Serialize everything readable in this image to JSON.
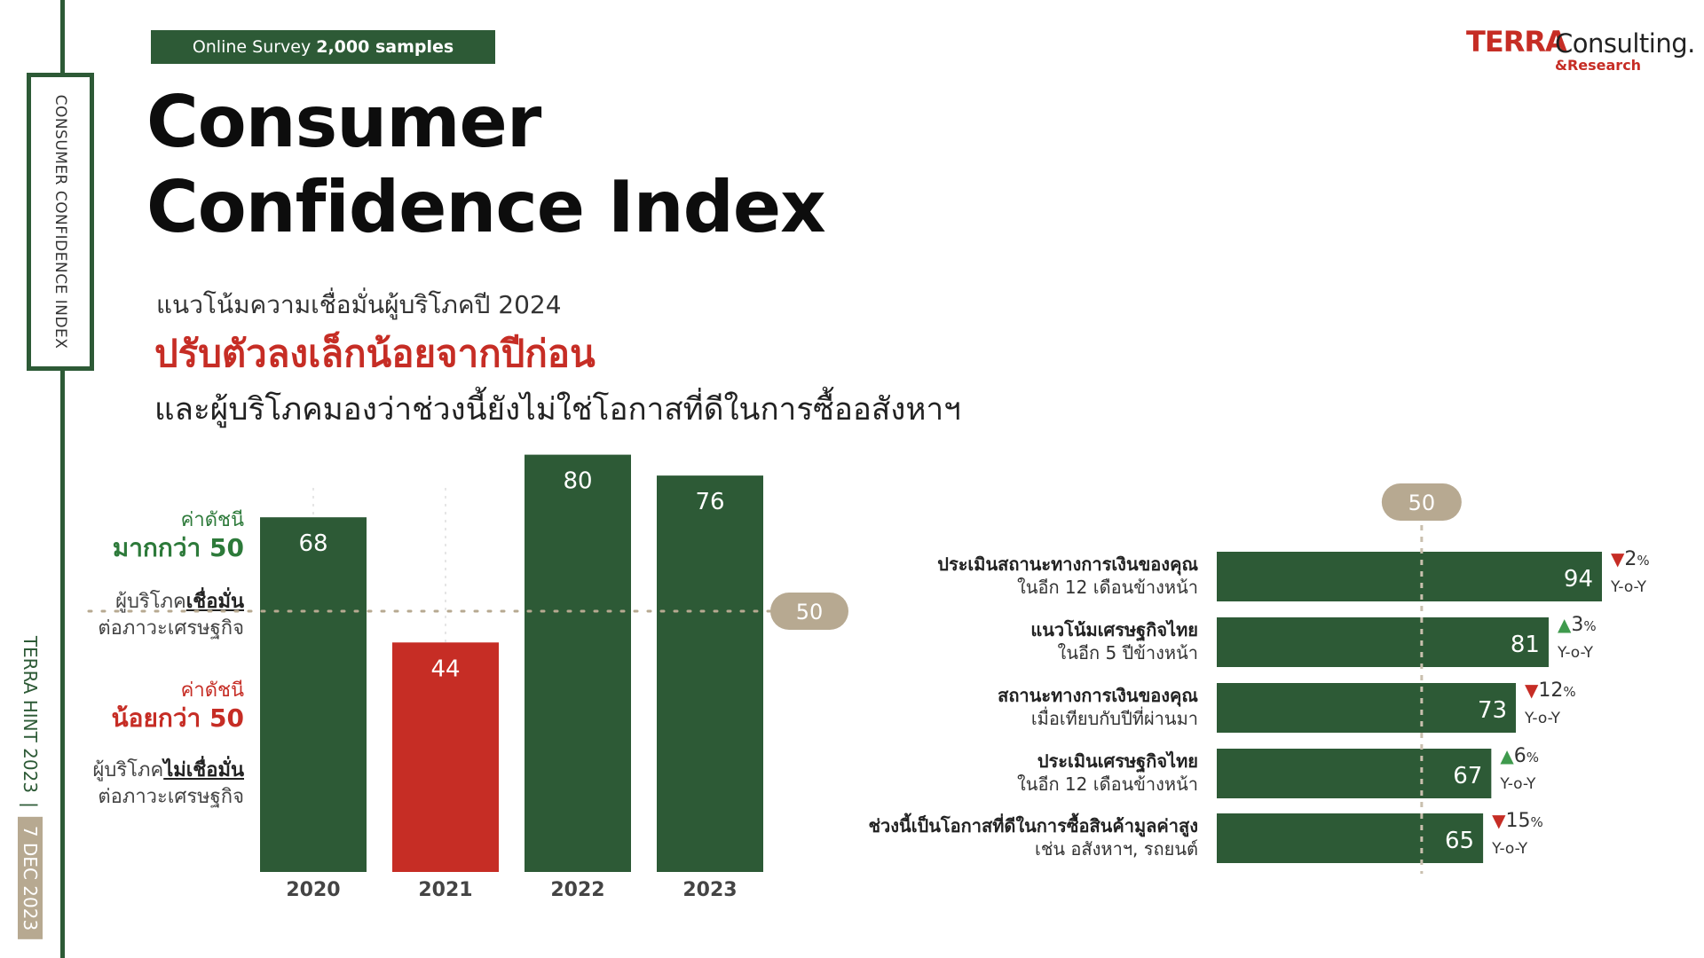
{
  "rail": {
    "vertical_title": "CONSUMER CONFIDENCE INDEX",
    "hint": "TERRA HINT 2023",
    "separator": "|",
    "date": "7 DEC 2023"
  },
  "header": {
    "tag_text": "Online Survey",
    "tag_bold": "2,000 samples",
    "title_line1": "Consumer",
    "title_line2": "Confidence Index",
    "subtitle1": "แนวโน้มความเชื่อมั่นผู้บริโภคปี 2024",
    "subtitle2": "ปรับตัวลงเล็กน้อยจากปีก่อน",
    "subtitle3": "และผู้บริโภคมองว่าช่วงนี้ยังไม่ใช่โอกาสที่ดีในการซื้ออสังหาฯ"
  },
  "logo": {
    "terra": "TERRA",
    "consulting": "Consulting.",
    "research": "&Research"
  },
  "legend": {
    "above_line1": "ค่าดัชนี",
    "above_line2": "มากกว่า 50",
    "above_desc_prefix": "ผู้บริโภค",
    "above_desc_emph": "เชื่อมั่น",
    "above_desc_line2": "ต่อภาวะเศรษฐกิจ",
    "below_line1": "ค่าดัชนี",
    "below_line2": "น้อยกว่า 50",
    "below_desc_prefix": "ผู้บริโภค",
    "below_desc_emph": "ไม่เชื่อมั่น",
    "below_desc_line2": "ต่อภาวะเศรษฐกิจ"
  },
  "colors": {
    "green": "#2d5a36",
    "red": "#c62d25",
    "pill": "#b7a991",
    "up": "#3f9a4d"
  },
  "chart_data": [
    {
      "type": "bar",
      "title": "",
      "categories": [
        "2020",
        "2021",
        "2022",
        "2023"
      ],
      "values": [
        68,
        44,
        80,
        76
      ],
      "bar_colors": [
        "#2d5a36",
        "#c62d25",
        "#2d5a36",
        "#2d5a36"
      ],
      "reference_line": 50,
      "reference_label": "50",
      "ylim": [
        0,
        100
      ]
    },
    {
      "type": "bar",
      "orientation": "horizontal",
      "title": "",
      "categories": [
        {
          "line1": "ประเมินสถานะทางการเงินของคุณ",
          "line2": "ในอีก 12 เดือนข้างหน้า"
        },
        {
          "line1": "แนวโน้มเศรษฐกิจไทย",
          "line2": "ในอีก 5 ปีข้างหน้า"
        },
        {
          "line1": "สถานะทางการเงินของคุณ",
          "line2": "เมื่อเทียบกับปีที่ผ่านมา"
        },
        {
          "line1": "ประเมินเศรษฐกิจไทย",
          "line2": "ในอีก 12 เดือนข้างหน้า"
        },
        {
          "line1": "ช่วงนี้เป็นโอกาสที่ดีในการซื้อสินค้ามูลค่าสูง",
          "line2": "เช่น อสังหาฯ, รถยนต์"
        }
      ],
      "values": [
        94,
        81,
        73,
        67,
        65
      ],
      "changes": [
        {
          "direction": "down",
          "value": "2",
          "unit": "%",
          "label": "Y-o-Y"
        },
        {
          "direction": "up",
          "value": "3",
          "unit": "%",
          "label": "Y-o-Y"
        },
        {
          "direction": "down",
          "value": "12",
          "unit": "%",
          "label": "Y-o-Y"
        },
        {
          "direction": "up",
          "value": "6",
          "unit": "%",
          "label": "Y-o-Y"
        },
        {
          "direction": "down",
          "value": "15",
          "unit": "%",
          "label": "Y-o-Y"
        }
      ],
      "reference_line": 50,
      "reference_label": "50",
      "xlim": [
        0,
        100
      ]
    }
  ]
}
